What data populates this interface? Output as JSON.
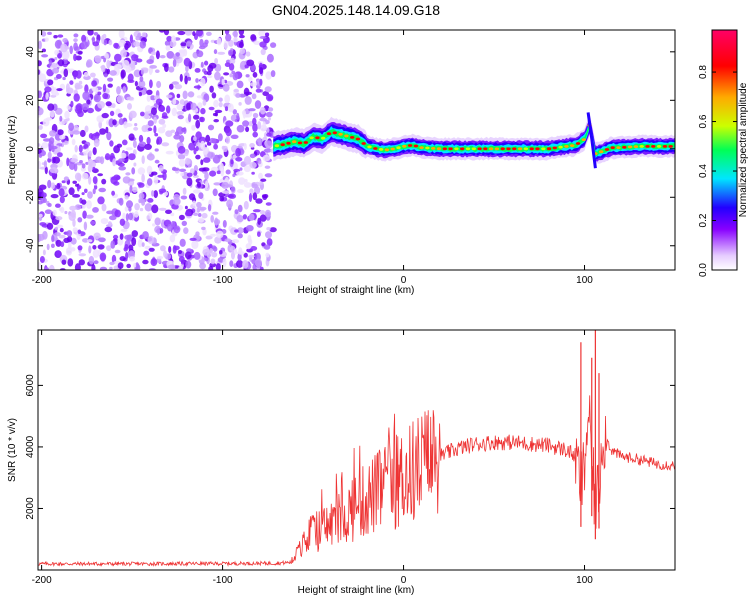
{
  "figure": {
    "title": "GN04.2025.148.14.09.G18"
  },
  "chart_data": [
    {
      "type": "heatmap",
      "title": "GN04.2025.148.14.09.G18",
      "xlabel": "Height of straight line (km)",
      "ylabel": "Frequency (Hz)",
      "xlim": [
        -202,
        150
      ],
      "ylim": [
        -50,
        49
      ],
      "xticks": [
        -200,
        -100,
        0,
        100
      ],
      "yticks": [
        -40,
        -20,
        0,
        20,
        40
      ],
      "grid": false,
      "colorbar": {
        "label": "Normalized spectral amplitude",
        "range": [
          0,
          0.97
        ],
        "ticks": [
          0.0,
          0.2,
          0.4,
          0.6,
          0.8
        ],
        "colormap": [
          "#ffffff",
          "#e6ccff",
          "#8800ff",
          "#2200ff",
          "#00e6ff",
          "#00ff55",
          "#ccff00",
          "#ffaa00",
          "#ff0000",
          "#ff0066"
        ]
      },
      "noise_region_x": [
        -202,
        -72
      ],
      "signal_ridge": {
        "x": [
          -72,
          -65,
          -60,
          -55,
          -50,
          -45,
          -40,
          -35,
          -30,
          -25,
          -20,
          -15,
          -10,
          -5,
          0,
          5,
          10,
          20,
          30,
          40,
          50,
          60,
          70,
          80,
          90,
          95,
          100,
          103,
          106,
          110,
          115,
          120,
          130,
          140,
          150
        ],
        "freq": [
          1,
          2,
          3,
          2,
          5,
          4,
          7,
          6,
          5,
          4,
          1,
          0,
          -0.5,
          0,
          1,
          1.5,
          0.5,
          0,
          0,
          0,
          0,
          0,
          0,
          0,
          1,
          1.5,
          4,
          10,
          -2,
          -1,
          0.5,
          0.5,
          1,
          1,
          1
        ]
      }
    },
    {
      "type": "line",
      "xlabel": "Height of straight line (km)",
      "ylabel": "SNR (10 * v/v)",
      "xlim": [
        -202,
        150
      ],
      "ylim": [
        0,
        7800
      ],
      "xticks": [
        -200,
        -100,
        0,
        100
      ],
      "yticks": [
        2000,
        4000,
        6000
      ],
      "grid": false,
      "series": [
        {
          "color": "#ee3333",
          "envelope_x": [
            -202,
            -150,
            -100,
            -70,
            -62,
            -58,
            -50,
            -40,
            -30,
            -20,
            -10,
            0,
            10,
            20,
            30,
            40,
            50,
            60,
            70,
            80,
            90,
            95,
            98,
            100,
            102,
            104,
            106,
            108,
            110,
            115,
            120,
            130,
            140,
            150
          ],
          "envelope_y": [
            200,
            200,
            210,
            220,
            250,
            600,
            1200,
            1500,
            1900,
            2300,
            2700,
            3000,
            3400,
            3700,
            3950,
            4100,
            4150,
            4150,
            4100,
            4050,
            3900,
            3700,
            2800,
            3300,
            5200,
            3500,
            2000,
            2700,
            4500,
            3900,
            3700,
            3600,
            3450,
            3400
          ],
          "spikes": [
            {
              "x": 98,
              "y": 7400
            },
            {
              "x": 104,
              "y": 6900
            },
            {
              "x": 106,
              "y": 7800
            },
            {
              "x": 108,
              "y": 6400
            }
          ]
        }
      ]
    }
  ]
}
